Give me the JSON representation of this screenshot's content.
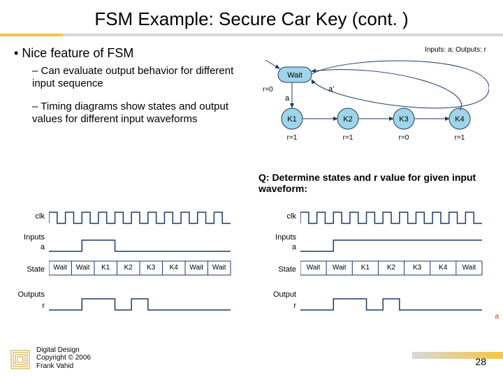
{
  "title": "FSM Example: Secure Car Key (cont. )",
  "bullet": "Nice feature of FSM",
  "sub1": "Can evaluate output behavior for different input sequence",
  "sub2": "Timing diagrams show states and output values for different input waveforms",
  "io_text": "Inputs: a; Outputs: r",
  "question": "Q: Determine states and r value for given input waveform:",
  "fsm": {
    "wait_label": "Wait",
    "wait_output": "r=0",
    "self_loop": "a'",
    "to_k1": "a",
    "states": [
      "K1",
      "K2",
      "K3",
      "K4"
    ],
    "outputs": [
      "r=1",
      "r=1",
      "r=0",
      "r=1"
    ],
    "state_fill": "#9fd5e8",
    "stroke": "#1e3a66"
  },
  "timing_left": {
    "labels": {
      "clk": "clk",
      "inputs": "Inputs",
      "a": "a",
      "state": "State",
      "outputs": "Outputs",
      "r": "r"
    },
    "clk_periods": 11,
    "a_wave": [
      0,
      0,
      1,
      1,
      0,
      0,
      0,
      0,
      0,
      0,
      0
    ],
    "states": [
      "Wait",
      "Wait",
      "K1",
      "K2",
      "K3",
      "K4",
      "Wait",
      "Wait"
    ],
    "r_wave": [
      0,
      0,
      1,
      1,
      0,
      1,
      0,
      0,
      0,
      0,
      0
    ],
    "stroke": "#1e3a66"
  },
  "timing_right": {
    "labels": {
      "clk": "clk",
      "inputs": "Inputs",
      "a": "a",
      "state": "State",
      "output": "Output",
      "r": "r"
    },
    "clk_periods": 11,
    "a_wave": [
      0,
      0,
      1,
      1,
      1,
      1,
      1,
      1,
      1,
      1,
      1
    ],
    "states": [
      "Wait",
      "Wait",
      "K1",
      "K2",
      "K3",
      "K4",
      "Wait"
    ],
    "r_wave": [
      0,
      0,
      1,
      1,
      0,
      1,
      0,
      0,
      0,
      0,
      0
    ],
    "stroke": "#1e3a66"
  },
  "footer": {
    "line1": "Digital Design",
    "line2": "Copyright © 2006",
    "line3": "Frank Vahid",
    "page": "28"
  },
  "colors": {
    "accent": "#f5c542",
    "wave": "#1e3a66"
  }
}
